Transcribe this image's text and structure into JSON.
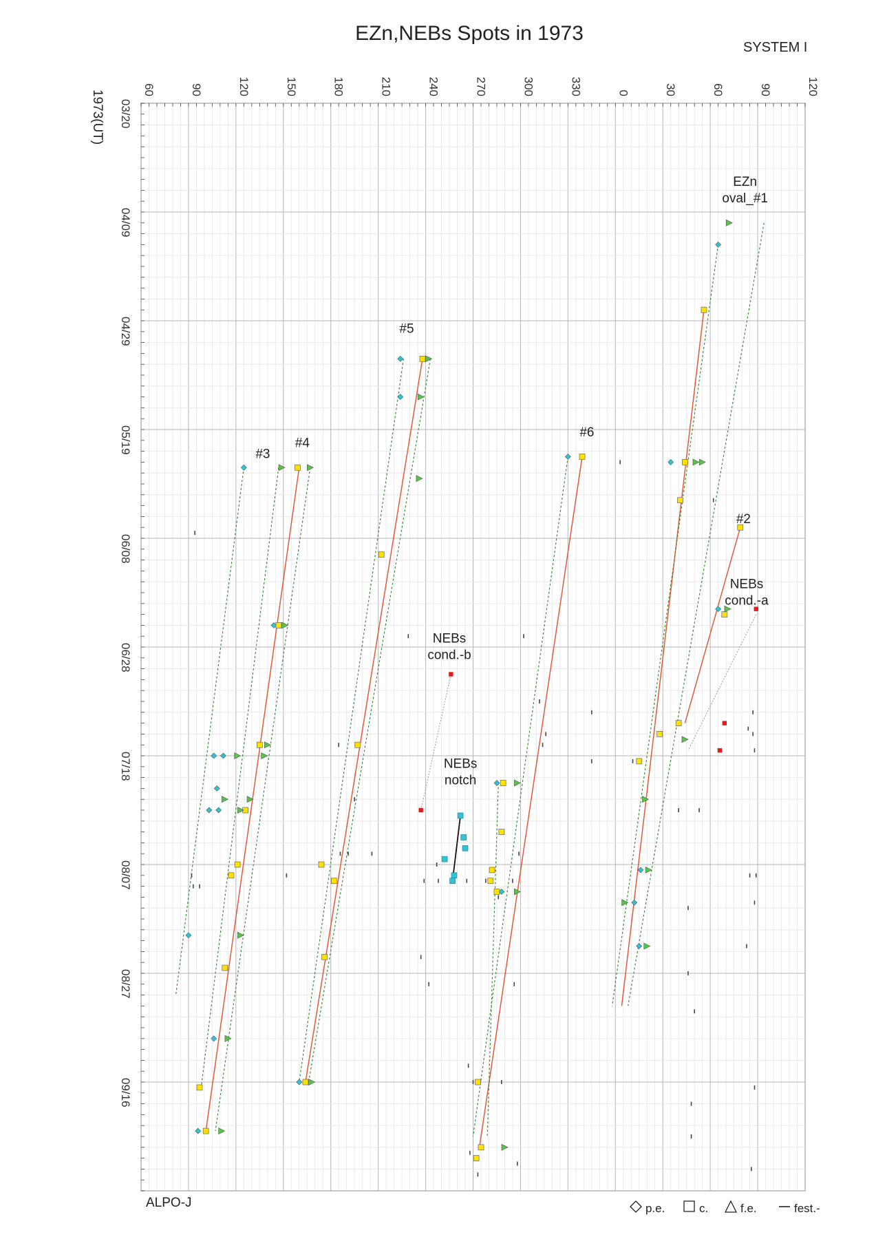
{
  "chart_data": {
    "type": "scatter",
    "title": "EZn,NEBs Spots  in 1973",
    "system_label": "SYSTEM I",
    "y_axis_label": "1973(UT)",
    "credit": "ALPO-J",
    "x_axis": {
      "quantity": "longitude (System I)",
      "ticks": [
        "60",
        "90",
        "120",
        "150",
        "180",
        "210",
        "240",
        "270",
        "300",
        "330",
        "0",
        "30",
        "60",
        "90",
        "120"
      ],
      "range": [
        60,
        480
      ]
    },
    "y_axis": {
      "quantity": "date 1973",
      "ticks": [
        "03/20",
        "04/09",
        "04/29",
        "05/19",
        "06/08",
        "06/28",
        "07/18",
        "08/07",
        "08/27",
        "09/16"
      ],
      "range": [
        "1973-03-20",
        "1973-10-06"
      ]
    },
    "legend": [
      {
        "symbol": "diamond",
        "label": "p.e."
      },
      {
        "symbol": "square",
        "label": "c."
      },
      {
        "symbol": "triangle",
        "label": "f.e."
      },
      {
        "symbol": "dash",
        "label": "fest.-"
      }
    ],
    "colors": {
      "pe": "#2ec4d6",
      "c": "#ffe100",
      "fe": "#55c548",
      "fest": "#444444",
      "drift_c": "#e05a3a",
      "drift_edge": "#3a8a3a",
      "cond": "#e01c1c",
      "notch": "#2ec4d6"
    },
    "annotations": [
      {
        "id": "oval1",
        "lines": [
          "EZn",
          "oval_#1"
        ],
        "lon": 442,
        "date": "1973-04-08"
      },
      {
        "id": "n2",
        "lines": [
          "#2"
        ],
        "lon": 441,
        "date": "1973-06-06"
      },
      {
        "id": "n3",
        "lines": [
          "#3"
        ],
        "lon": 137,
        "date": "1973-05-25"
      },
      {
        "id": "n4",
        "lines": [
          "#4"
        ],
        "lon": 162,
        "date": "1973-05-23"
      },
      {
        "id": "n5",
        "lines": [
          "#5"
        ],
        "lon": 228,
        "date": "1973-05-02"
      },
      {
        "id": "n6",
        "lines": [
          "#6"
        ],
        "lon": 342,
        "date": "1973-05-21"
      },
      {
        "id": "condA",
        "lines": [
          "NEBs",
          "cond.-a"
        ],
        "lon": 443,
        "date": "1973-06-21"
      },
      {
        "id": "condB",
        "lines": [
          "NEBs",
          "cond.-b"
        ],
        "lon": 255,
        "date": "1973-07-01"
      },
      {
        "id": "notch",
        "lines": [
          "NEBs",
          "notch"
        ],
        "lon": 262,
        "date": "1973-07-24"
      }
    ],
    "drift_lines": [
      {
        "name": "oval_#1",
        "c": [
          [
            416,
            "1973-04-27"
          ],
          [
            364,
            "1973-09-02"
          ]
        ],
        "pe": [
          [
            425,
            "1973-04-15"
          ],
          [
            358,
            "1973-09-02"
          ]
        ],
        "fe": [
          [
            454,
            "1973-04-11"
          ],
          [
            368,
            "1973-09-02"
          ]
        ]
      },
      {
        "name": "#2",
        "c": [
          [
            439,
            "1973-06-06"
          ],
          [
            404,
            "1973-07-12"
          ]
        ],
        "cond": [
          [
            449,
            "1973-06-22"
          ],
          [
            406,
            "1973-07-17"
          ]
        ]
      },
      {
        "name": "#3",
        "pe": [
          [
            125,
            "1973-05-26"
          ],
          [
            82,
            "1973-08-31"
          ]
        ],
        "fe": [
          [
            147,
            "1973-05-26"
          ],
          [
            98,
            "1973-09-17"
          ]
        ]
      },
      {
        "name": "#4",
        "c": [
          [
            160,
            "1973-05-26"
          ],
          [
            101,
            "1973-09-25"
          ]
        ],
        "fe": [
          [
            167,
            "1973-05-26"
          ],
          [
            107,
            "1973-09-25"
          ]
        ]
      },
      {
        "name": "#5",
        "c": [
          [
            238,
            "1973-05-06"
          ],
          [
            164,
            "1973-09-16"
          ]
        ],
        "pe": [
          [
            226,
            "1973-05-06"
          ],
          [
            160,
            "1973-09-16"
          ]
        ],
        "fe": [
          [
            243,
            "1973-05-06"
          ],
          [
            166,
            "1973-09-16"
          ]
        ]
      },
      {
        "name": "#6",
        "c": [
          [
            339,
            "1973-05-24"
          ],
          [
            274,
            "1973-09-28"
          ]
        ],
        "pe": [
          [
            330,
            "1973-05-24"
          ],
          [
            270,
            "1973-09-26"
          ]
        ],
        "fe": [
          [
            286,
            "1973-07-23"
          ],
          [
            279,
            "1973-09-26"
          ]
        ]
      },
      {
        "name": "cond.-b",
        "cond": [
          [
            256,
            "1973-07-03"
          ],
          [
            237,
            "1973-07-28"
          ]
        ]
      },
      {
        "name": "notch",
        "notch": [
          [
            262,
            "1973-07-29"
          ],
          [
            257,
            "1973-08-10"
          ]
        ]
      }
    ],
    "points": {
      "c": [
        [
          416,
          "1973-04-27"
        ],
        [
          404,
          "1973-05-25"
        ],
        [
          401,
          "1973-06-01"
        ],
        [
          439,
          "1973-06-06"
        ],
        [
          429,
          "1973-06-22"
        ],
        [
          400,
          "1973-07-12"
        ],
        [
          388,
          "1973-07-14"
        ],
        [
          375,
          "1973-07-19"
        ],
        [
          159,
          "1973-05-26"
        ],
        [
          147,
          "1973-06-24"
        ],
        [
          135,
          "1973-07-16"
        ],
        [
          126,
          "1973-07-28"
        ],
        [
          121,
          "1973-08-07"
        ],
        [
          117,
          "1973-08-09"
        ],
        [
          113,
          "1973-08-26"
        ],
        [
          101,
          "1973-09-25"
        ],
        [
          97,
          "1973-09-17"
        ],
        [
          238,
          "1973-05-06"
        ],
        [
          212,
          "1973-06-11"
        ],
        [
          197,
          "1973-07-16"
        ],
        [
          174,
          "1973-08-07"
        ],
        [
          182,
          "1973-08-10"
        ],
        [
          176,
          "1973-08-24"
        ],
        [
          164,
          "1973-09-16"
        ],
        [
          339,
          "1973-05-24"
        ],
        [
          289,
          "1973-07-23"
        ],
        [
          288,
          "1973-08-01"
        ],
        [
          282,
          "1973-08-08"
        ],
        [
          281,
          "1973-08-10"
        ],
        [
          285,
          "1973-08-12"
        ],
        [
          273,
          "1973-09-16"
        ],
        [
          275,
          "1973-09-28"
        ],
        [
          272,
          "1973-09-30"
        ]
      ],
      "pe": [
        [
          425,
          "1973-04-15"
        ],
        [
          395,
          "1973-05-25"
        ],
        [
          425,
          "1973-06-21"
        ],
        [
          376,
          "1973-08-08"
        ],
        [
          372,
          "1973-08-14"
        ],
        [
          375,
          "1973-08-22"
        ],
        [
          106,
          "1973-07-18"
        ],
        [
          108,
          "1973-07-24"
        ],
        [
          109,
          "1973-07-28"
        ],
        [
          103,
          "1973-07-28"
        ],
        [
          112,
          "1973-07-18"
        ],
        [
          90,
          "1973-08-20"
        ],
        [
          125,
          "1973-05-26"
        ],
        [
          144,
          "1973-06-24"
        ],
        [
          224,
          "1973-05-06"
        ],
        [
          224,
          "1973-05-13"
        ],
        [
          330,
          "1973-05-24"
        ],
        [
          285,
          "1973-07-23"
        ],
        [
          288,
          "1973-08-12"
        ],
        [
          96,
          "1973-09-25"
        ],
        [
          160,
          "1973-09-16"
        ],
        [
          106,
          "1973-09-08"
        ]
      ],
      "fe": [
        [
          432,
          "1973-04-11"
        ],
        [
          411,
          "1973-05-25"
        ],
        [
          415,
          "1973-05-25"
        ],
        [
          431,
          "1973-06-21"
        ],
        [
          379,
          "1973-07-26"
        ],
        [
          381,
          "1973-08-08"
        ],
        [
          380,
          "1973-08-22"
        ],
        [
          366,
          "1973-08-14"
        ],
        [
          167,
          "1973-05-26"
        ],
        [
          149,
          "1973-05-26"
        ],
        [
          151,
          "1973-06-24"
        ],
        [
          121,
          "1973-07-18"
        ],
        [
          140,
          "1973-07-16"
        ],
        [
          138,
          "1973-07-18"
        ],
        [
          129,
          "1973-07-26"
        ],
        [
          123,
          "1973-07-28"
        ],
        [
          113,
          "1973-07-26"
        ],
        [
          123,
          "1973-08-20"
        ],
        [
          115,
          "1973-09-08"
        ],
        [
          111,
          "1973-09-25"
        ],
        [
          242,
          "1973-05-06"
        ],
        [
          237,
          "1973-05-13"
        ],
        [
          236,
          "1973-05-28"
        ],
        [
          298,
          "1973-07-23"
        ],
        [
          298,
          "1973-08-12"
        ],
        [
          290,
          "1973-09-28"
        ],
        [
          168,
          "1973-09-16"
        ],
        [
          404,
          "1973-07-15"
        ]
      ],
      "cond": [
        [
          256,
          "1973-07-03"
        ],
        [
          237,
          "1973-07-28"
        ],
        [
          449,
          "1973-06-21"
        ],
        [
          429,
          "1973-07-12"
        ],
        [
          426,
          "1973-07-17"
        ]
      ],
      "notch": [
        [
          262,
          "1973-07-29"
        ],
        [
          264,
          "1973-08-02"
        ],
        [
          265,
          "1973-08-04"
        ],
        [
          252,
          "1973-08-06"
        ],
        [
          258,
          "1973-08-09"
        ],
        [
          257,
          "1973-08-10"
        ]
      ],
      "fest": [
        [
          363,
          "1973-05-25"
        ],
        [
          400,
          "1973-06-01"
        ],
        [
          422,
          "1973-06-01"
        ],
        [
          302,
          "1973-06-26"
        ],
        [
          229,
          "1973-06-26"
        ],
        [
          345,
          "1973-07-10"
        ],
        [
          312,
          "1973-07-08"
        ],
        [
          447,
          "1973-07-10"
        ],
        [
          316,
          "1973-07-14"
        ],
        [
          314,
          "1973-07-16"
        ],
        [
          447,
          "1973-07-14"
        ],
        [
          448,
          "1973-07-17"
        ],
        [
          444,
          "1973-07-13"
        ],
        [
          371,
          "1973-07-19"
        ],
        [
          345,
          "1973-07-19"
        ],
        [
          185,
          "1973-07-16"
        ],
        [
          413,
          "1973-07-28"
        ],
        [
          400,
          "1973-07-28"
        ],
        [
          94,
          "1973-06-07"
        ],
        [
          112,
          "1973-07-26"
        ],
        [
          195,
          "1973-07-26"
        ],
        [
          186,
          "1973-08-05"
        ],
        [
          191,
          "1973-08-05"
        ],
        [
          206,
          "1973-08-05"
        ],
        [
          152,
          "1973-08-09"
        ],
        [
          92,
          "1973-08-09"
        ],
        [
          97,
          "1973-08-11"
        ],
        [
          93,
          "1973-08-11"
        ],
        [
          247,
          "1973-08-07"
        ],
        [
          248,
          "1973-08-10"
        ],
        [
          239,
          "1973-08-10"
        ],
        [
          266,
          "1973-08-10"
        ],
        [
          278,
          "1973-08-10"
        ],
        [
          282,
          "1973-08-10"
        ],
        [
          295,
          "1973-08-10"
        ],
        [
          286,
          "1973-08-13"
        ],
        [
          299,
          "1973-08-05"
        ],
        [
          445,
          "1973-08-09"
        ],
        [
          449,
          "1973-08-09"
        ],
        [
          406,
          "1973-08-15"
        ],
        [
          448,
          "1973-08-14"
        ],
        [
          443,
          "1973-08-22"
        ],
        [
          296,
          "1973-08-29"
        ],
        [
          237,
          "1973-08-24"
        ],
        [
          242,
          "1973-08-29"
        ],
        [
          406,
          "1973-08-27"
        ],
        [
          267,
          "1973-09-13"
        ],
        [
          270,
          "1973-09-16"
        ],
        [
          288,
          "1973-09-16"
        ],
        [
          96,
          "1973-09-17"
        ],
        [
          408,
          "1973-09-20"
        ],
        [
          448,
          "1973-09-17"
        ],
        [
          408,
          "1973-09-26"
        ],
        [
          410,
          "1973-09-03"
        ],
        [
          268,
          "1973-09-29"
        ],
        [
          298,
          "1973-10-01"
        ],
        [
          273,
          "1973-10-03"
        ],
        [
          446,
          "1973-10-02"
        ]
      ]
    }
  }
}
